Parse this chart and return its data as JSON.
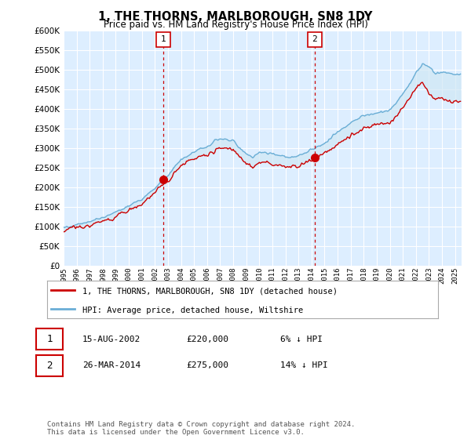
{
  "title": "1, THE THORNS, MARLBOROUGH, SN8 1DY",
  "subtitle": "Price paid vs. HM Land Registry's House Price Index (HPI)",
  "legend_line1": "1, THE THORNS, MARLBOROUGH, SN8 1DY (detached house)",
  "legend_line2": "HPI: Average price, detached house, Wiltshire",
  "sale1_label": "1",
  "sale1_date": "15-AUG-2002",
  "sale1_price": "£220,000",
  "sale1_pct": "6% ↓ HPI",
  "sale1_year": 2002.625,
  "sale1_value": 220000,
  "sale2_label": "2",
  "sale2_date": "26-MAR-2014",
  "sale2_price": "£275,000",
  "sale2_pct": "14% ↓ HPI",
  "sale2_year": 2014.23,
  "sale2_value": 275000,
  "footer1": "Contains HM Land Registry data © Crown copyright and database right 2024.",
  "footer2": "This data is licensed under the Open Government Licence v3.0.",
  "hpi_color": "#6aaed6",
  "price_color": "#cc0000",
  "fill_color": "#d0e8f5",
  "vline_color": "#cc0000",
  "background_color": "#ddeeff",
  "ylim": [
    0,
    600000
  ],
  "xlim_start": 1995.0,
  "xlim_end": 2025.5
}
